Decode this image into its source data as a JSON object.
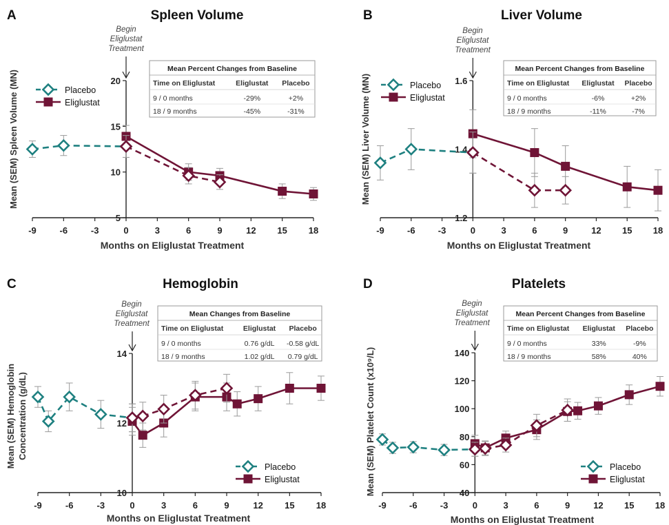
{
  "colors": {
    "placebo": "#1e8080",
    "eliglustat": "#6f1436",
    "error": "#9a9a9a",
    "axis": "#222222"
  },
  "chart_data": [
    {
      "letter": "A",
      "type": "line",
      "title": "Spleen Volume",
      "xlabel": "Months on Eliglustat Treatment",
      "ylabel": "Mean (SEM) Spleen Volume (MN)",
      "annotation": [
        "Begin",
        "Eliglustat",
        "Treatment"
      ],
      "xticks": [
        -9,
        -6,
        -3,
        0,
        3,
        6,
        9,
        12,
        15,
        18
      ],
      "yticks": [
        5,
        10,
        15,
        20
      ],
      "ylim": [
        5,
        20
      ],
      "series": [
        {
          "name": "Placebo",
          "x": [
            -9,
            -6,
            0
          ],
          "y": [
            12.5,
            12.9,
            12.8
          ],
          "err": [
            0.9,
            1.1,
            1.2
          ],
          "style": "teal-dash"
        },
        {
          "name": "",
          "x": [
            0,
            6,
            9
          ],
          "y": [
            12.8,
            9.6,
            8.9
          ],
          "err": [
            1.2,
            0.9,
            0.8
          ],
          "style": "maroon-dash-open"
        },
        {
          "name": "Eliglustat",
          "x": [
            0,
            6,
            9,
            15,
            18
          ],
          "y": [
            13.9,
            10.0,
            9.6,
            7.9,
            7.6
          ],
          "err": [
            1.2,
            0.9,
            0.8,
            0.8,
            0.7
          ],
          "style": "maroon-solid"
        }
      ],
      "legend": {
        "placement": "left",
        "entries": [
          "Placebo",
          "Eliglustat"
        ]
      },
      "table": {
        "title": "Mean Percent Changes from Baseline",
        "headers": [
          "Time on Eliglustat",
          "Eliglustat",
          "Placebo"
        ],
        "rows": [
          [
            "9 / 0 months",
            "-29%",
            "+2%"
          ],
          [
            "18 / 9 months",
            "-45%",
            "-31%"
          ]
        ]
      }
    },
    {
      "letter": "B",
      "type": "line",
      "title": "Liver Volume",
      "xlabel": "Months on Eliglustat Treatment",
      "ylabel": "Mean (SEM) Liver Volume (MN)",
      "annotation": [
        "Begin",
        "Eliglustat",
        "Treatment"
      ],
      "xticks": [
        -9,
        -6,
        -3,
        0,
        3,
        6,
        9,
        12,
        15,
        18
      ],
      "yticks": [
        1.2,
        1.4,
        1.6
      ],
      "ylim": [
        1.2,
        1.6
      ],
      "series": [
        {
          "name": "Placebo",
          "x": [
            -9,
            -6,
            0
          ],
          "y": [
            1.36,
            1.4,
            1.39
          ],
          "err": [
            0.05,
            0.06,
            0.06
          ],
          "style": "teal-dash"
        },
        {
          "name": "",
          "x": [
            0,
            6,
            9
          ],
          "y": [
            1.39,
            1.28,
            1.28
          ],
          "err": [
            0.06,
            0.05,
            0.04
          ],
          "style": "maroon-dash-open"
        },
        {
          "name": "Eliglustat",
          "x": [
            0,
            6,
            9,
            15,
            18
          ],
          "y": [
            1.445,
            1.39,
            1.35,
            1.29,
            1.28
          ],
          "err": [
            0.07,
            0.07,
            0.06,
            0.06,
            0.06
          ],
          "style": "maroon-solid"
        }
      ],
      "legend": {
        "placement": "left",
        "entries": [
          "Placebo",
          "Eliglustat"
        ]
      },
      "table": {
        "title": "Mean Percent Changes from Baseline",
        "headers": [
          "Time on Eliglustat",
          "Eliglustat",
          "Placebo"
        ],
        "rows": [
          [
            "9 / 0 months",
            "-6%",
            "+2%"
          ],
          [
            "18 / 9 months",
            "-11%",
            "-7%"
          ]
        ]
      }
    },
    {
      "letter": "C",
      "type": "line",
      "title": "Hemoglobin",
      "xlabel": "Months on Eliglustat Treatment",
      "ylabel": [
        "Mean (SEM) Hemoglobin",
        "Concentration (g/dL)"
      ],
      "annotation": [
        "Begin",
        "Eliglustat",
        "Treatment"
      ],
      "xticks": [
        -9,
        -6,
        -3,
        0,
        3,
        6,
        9,
        12,
        15,
        18
      ],
      "yticks": [
        10,
        12,
        14
      ],
      "ylim": [
        10,
        14
      ],
      "series": [
        {
          "name": "Placebo",
          "x": [
            -9,
            -8,
            -6,
            -3,
            0
          ],
          "y": [
            12.75,
            12.05,
            12.75,
            12.25,
            12.15
          ],
          "err": [
            0.3,
            0.3,
            0.4,
            0.4,
            0.4
          ],
          "style": "teal-dash"
        },
        {
          "name": "",
          "x": [
            0,
            1,
            3,
            6,
            9
          ],
          "y": [
            12.15,
            12.2,
            12.4,
            12.8,
            13.0
          ],
          "err": [
            0.4,
            0.4,
            0.4,
            0.4,
            0.4
          ],
          "style": "maroon-dash-open"
        },
        {
          "name": "Eliglustat",
          "x": [
            0,
            1,
            3,
            6,
            9,
            10,
            12,
            15,
            18
          ],
          "y": [
            12.05,
            11.65,
            12.0,
            12.75,
            12.75,
            12.55,
            12.7,
            13.0,
            13.0
          ],
          "err": [
            0.4,
            0.35,
            0.4,
            0.4,
            0.4,
            0.35,
            0.35,
            0.45,
            0.35
          ],
          "style": "maroon-solid"
        }
      ],
      "legend": {
        "placement": "bottom-right",
        "entries": [
          "Placebo",
          "Eliglustat"
        ]
      },
      "table": {
        "title": "Mean Changes from Baseline",
        "headers": [
          "Time on Eliglustat",
          "Eliglustat",
          "Placebo"
        ],
        "rows": [
          [
            "9 / 0 months",
            "0.76 g/dL",
            "-0.58 g/dL"
          ],
          [
            "18 / 9 months",
            "1.02 g/dL",
            "0.79 g/dL"
          ]
        ]
      }
    },
    {
      "letter": "D",
      "type": "line",
      "title": "Platelets",
      "xlabel": "Months on Eliglustat Treatment",
      "ylabel": "Mean (SEM) Platelet Count (x10⁹/L)",
      "annotation": [
        "Begin",
        "Eliglustat",
        "Treatment"
      ],
      "xticks": [
        -9,
        -6,
        -3,
        0,
        3,
        6,
        9,
        12,
        15,
        18
      ],
      "yticks": [
        40,
        60,
        80,
        100,
        120,
        140
      ],
      "ylim": [
        40,
        140
      ],
      "series": [
        {
          "name": "Placebo",
          "x": [
            -9,
            -8,
            -6,
            -3,
            0
          ],
          "y": [
            78,
            72,
            72.5,
            70.5,
            71
          ],
          "err": [
            4,
            4,
            4,
            4,
            5
          ],
          "style": "teal-dash"
        },
        {
          "name": "",
          "x": [
            0,
            1,
            3,
            6,
            9
          ],
          "y": [
            71,
            71.5,
            74,
            88,
            99
          ],
          "err": [
            5,
            5,
            5,
            8,
            8
          ],
          "style": "maroon-dash-open"
        },
        {
          "name": "Eliglustat",
          "x": [
            0,
            1,
            3,
            6,
            9,
            10,
            12,
            15,
            18
          ],
          "y": [
            75,
            72,
            79,
            85,
            98,
            98.5,
            102,
            110,
            116
          ],
          "err": [
            6,
            5,
            5,
            7,
            7,
            6,
            6,
            7,
            7
          ],
          "style": "maroon-solid"
        }
      ],
      "legend": {
        "placement": "bottom-right",
        "entries": [
          "Placebo",
          "Eliglustat"
        ]
      },
      "table": {
        "title": "Mean Percent Changes from Baseline",
        "headers": [
          "Time on Eliglustat",
          "Eliglustat",
          "Placebo"
        ],
        "rows": [
          [
            "9 / 0 months",
            "33%",
            "-9%"
          ],
          [
            "18 / 9 months",
            "58%",
            "40%"
          ]
        ]
      }
    }
  ]
}
